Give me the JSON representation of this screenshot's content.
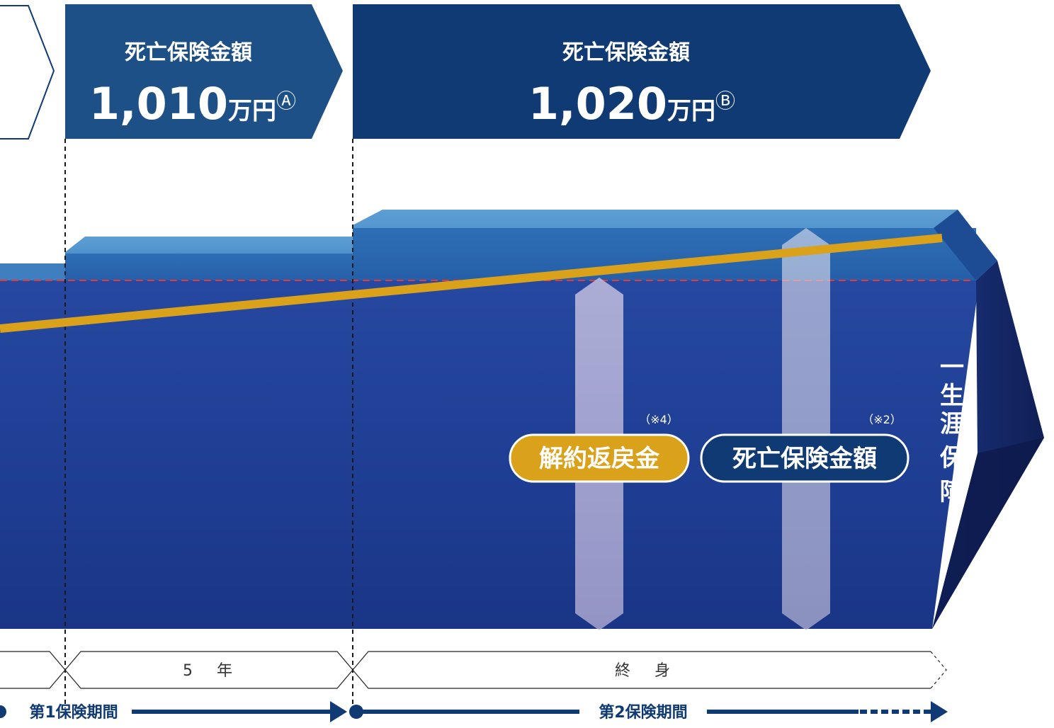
{
  "header": {
    "block_a": {
      "label": "死亡保険金額",
      "amount": "1,010",
      "unit": "万円",
      "mark": "Ⓐ"
    },
    "block_b": {
      "label": "死亡保険金額",
      "amount": "1,020",
      "unit": "万円",
      "mark": "Ⓑ"
    }
  },
  "side_label": {
    "chars": [
      "一",
      "生",
      "涯",
      "保",
      "障"
    ]
  },
  "badges": {
    "surrender": {
      "label": "解約返戻金",
      "note": "（※4）"
    },
    "death": {
      "label": "死亡保険金額",
      "note": "（※2）"
    }
  },
  "timeline": {
    "period_1": "5　年",
    "period_2": "終　身"
  },
  "phases": {
    "phase_1": "第1保険期間",
    "phase_2": "第2保険期間"
  },
  "colors": {
    "navy": "#0f3a73",
    "navy_light": "#1e5088",
    "body_blue": "#1e3f93",
    "gold": "#d9a21a",
    "dash_red": "#e03a3a"
  }
}
